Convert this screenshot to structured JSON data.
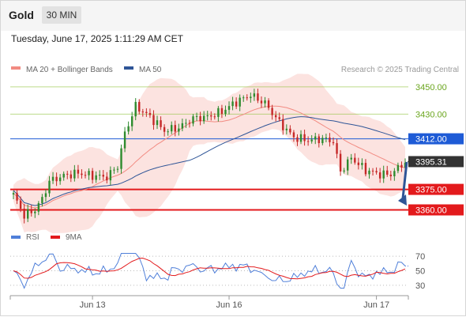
{
  "header": {
    "symbol": "Gold",
    "timeframe": "30 MIN",
    "datetime": "Tuesday, June 17, 2025 1:11:29 AM CET"
  },
  "legend": {
    "ma20_label": "MA 20 + Bollinger Bands",
    "ma50_label": "MA 50",
    "ma20_color": "#f28b82",
    "ma50_color": "#2f5597",
    "rsi_label": "RSI",
    "rsi9_label": "9MA",
    "rsi_color": "#4f7fd9",
    "rsi9_color": "#e31a1c"
  },
  "credit": "Research © 2025 Trading Central",
  "chart_data": [
    {
      "type": "candlestick",
      "ylim": [
        3347,
        3458
      ],
      "x_ticks": [
        {
          "label": "Jun 13",
          "index": 22
        },
        {
          "label": "Jun 16",
          "index": 60
        },
        {
          "label": "Jun 17",
          "index": 101
        }
      ],
      "last_price": "3395.31",
      "levels": [
        {
          "label": "3450.00",
          "value": 3450,
          "kind": "resistance",
          "color": "#8fc23a"
        },
        {
          "label": "3430.00",
          "value": 3430,
          "kind": "resistance",
          "color": "#8fc23a"
        },
        {
          "label": "3412.00",
          "value": 3412,
          "kind": "pivot",
          "color": "#1e5bd6"
        },
        {
          "label": "3375.00",
          "value": 3375,
          "kind": "support",
          "color": "#e31a1c"
        },
        {
          "label": "3360.00",
          "value": 3360,
          "kind": "support",
          "color": "#e31a1c"
        }
      ],
      "forecast": {
        "from_value": 3395,
        "to_value": 3362,
        "direction": "down",
        "color": "#2f5597"
      },
      "series": [
        {
          "name": "MA 20 + Bollinger Bands",
          "color": "#f28b82"
        },
        {
          "name": "MA 50",
          "color": "#2f5597"
        }
      ]
    },
    {
      "type": "line",
      "ylim": [
        20,
        80
      ],
      "y_ticks": [
        70,
        50,
        30
      ],
      "series": [
        {
          "name": "RSI",
          "color": "#4f7fd9"
        },
        {
          "name": "9MA",
          "color": "#e31a1c"
        }
      ]
    }
  ]
}
